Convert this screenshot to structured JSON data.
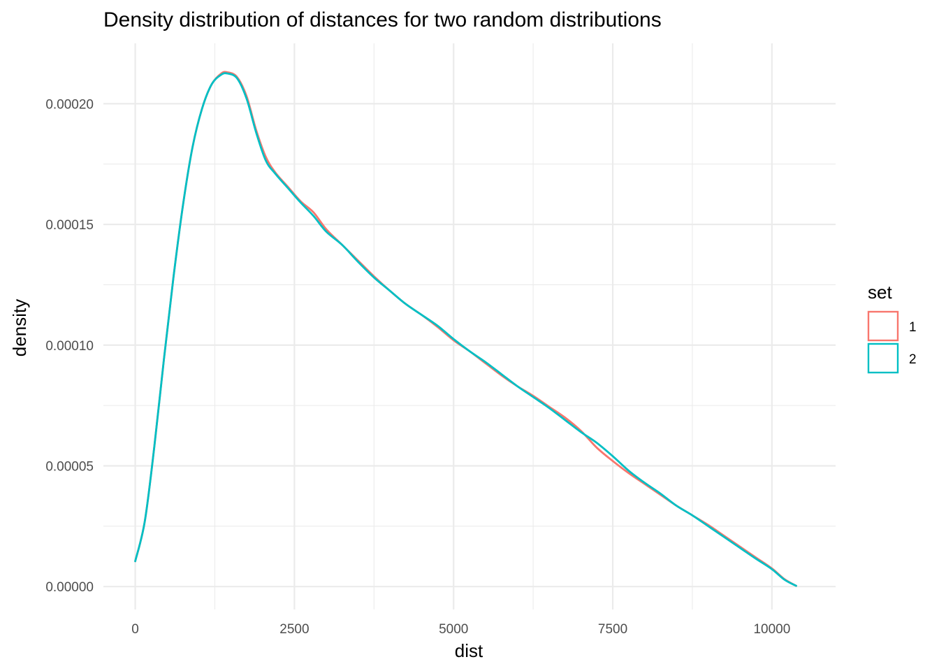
{
  "chart_data": {
    "type": "line",
    "title": "Density distribution of distances for two random distributions",
    "xlabel": "dist",
    "ylabel": "density",
    "xlim": [
      -500,
      11000
    ],
    "ylim": [
      -9.5e-06,
      0.000225
    ],
    "x_ticks": [
      0,
      2500,
      5000,
      7500,
      10000
    ],
    "x_tick_labels": [
      "0",
      "2500",
      "5000",
      "7500",
      "10000"
    ],
    "y_ticks": [
      0,
      5e-05,
      0.0001,
      0.00015,
      0.0002
    ],
    "y_tick_labels": [
      "0.00000",
      "0.00005",
      "0.00010",
      "0.00015",
      "0.00020"
    ],
    "grid": true,
    "legend": {
      "title": "set",
      "position": "right"
    },
    "series": [
      {
        "name": "1",
        "color": "#F8766D",
        "points": [
          [
            0,
            1.05e-05
          ],
          [
            150,
            2.7e-05
          ],
          [
            300,
            5.8e-05
          ],
          [
            450,
            9.4e-05
          ],
          [
            600,
            0.000128
          ],
          [
            750,
            0.000158
          ],
          [
            900,
            0.000182
          ],
          [
            1050,
            0.000198
          ],
          [
            1200,
            0.000208
          ],
          [
            1350,
            0.0002125
          ],
          [
            1450,
            0.000213
          ],
          [
            1600,
            0.000211
          ],
          [
            1750,
            0.000203
          ],
          [
            1900,
            0.000189
          ],
          [
            2050,
            0.000178
          ],
          [
            2200,
            0.0001715
          ],
          [
            2400,
            0.0001655
          ],
          [
            2600,
            0.0001595
          ],
          [
            2800,
            0.000155
          ],
          [
            3000,
            0.000148
          ],
          [
            3250,
            0.0001415
          ],
          [
            3500,
            0.000135
          ],
          [
            3750,
            0.0001285
          ],
          [
            4000,
            0.0001225
          ],
          [
            4250,
            0.000117
          ],
          [
            4500,
            0.0001125
          ],
          [
            4750,
            0.0001075
          ],
          [
            5000,
            0.000102
          ],
          [
            5250,
            9.75e-05
          ],
          [
            5500,
            9.25e-05
          ],
          [
            5750,
            8.75e-05
          ],
          [
            6000,
            8.3e-05
          ],
          [
            6250,
            7.9e-05
          ],
          [
            6500,
            7.45e-05
          ],
          [
            6750,
            7e-05
          ],
          [
            7000,
            6.45e-05
          ],
          [
            7250,
            5.75e-05
          ],
          [
            7500,
            5.2e-05
          ],
          [
            7750,
            4.7e-05
          ],
          [
            8000,
            4.25e-05
          ],
          [
            8250,
            3.8e-05
          ],
          [
            8500,
            3.35e-05
          ],
          [
            8750,
            2.95e-05
          ],
          [
            9000,
            2.55e-05
          ],
          [
            9250,
            2.1e-05
          ],
          [
            9500,
            1.65e-05
          ],
          [
            9750,
            1.2e-05
          ],
          [
            10000,
            7.5e-06
          ],
          [
            10200,
            3e-06
          ],
          [
            10380,
            3e-07
          ]
        ]
      },
      {
        "name": "2",
        "color": "#00BFC4",
        "points": [
          [
            0,
            1.05e-05
          ],
          [
            150,
            2.7e-05
          ],
          [
            300,
            5.8e-05
          ],
          [
            450,
            9.4e-05
          ],
          [
            600,
            0.000128
          ],
          [
            750,
            0.000158
          ],
          [
            900,
            0.000182
          ],
          [
            1050,
            0.000198
          ],
          [
            1200,
            0.000208
          ],
          [
            1350,
            0.000212
          ],
          [
            1450,
            0.0002125
          ],
          [
            1600,
            0.0002105
          ],
          [
            1750,
            0.000202
          ],
          [
            1900,
            0.000188
          ],
          [
            2050,
            0.0001765
          ],
          [
            2200,
            0.000171
          ],
          [
            2400,
            0.000165
          ],
          [
            2600,
            0.000159
          ],
          [
            2800,
            0.0001535
          ],
          [
            3000,
            0.000147
          ],
          [
            3250,
            0.0001415
          ],
          [
            3500,
            0.0001345
          ],
          [
            3750,
            0.000128
          ],
          [
            4000,
            0.0001225
          ],
          [
            4250,
            0.000117
          ],
          [
            4500,
            0.0001125
          ],
          [
            4750,
            0.000108
          ],
          [
            5000,
            0.0001025
          ],
          [
            5250,
            9.75e-05
          ],
          [
            5500,
            9.3e-05
          ],
          [
            5750,
            8.8e-05
          ],
          [
            6000,
            8.3e-05
          ],
          [
            6250,
            7.85e-05
          ],
          [
            6500,
            7.4e-05
          ],
          [
            6750,
            6.9e-05
          ],
          [
            7000,
            6.4e-05
          ],
          [
            7250,
            5.95e-05
          ],
          [
            7500,
            5.4e-05
          ],
          [
            7750,
            4.8e-05
          ],
          [
            8000,
            4.3e-05
          ],
          [
            8250,
            3.85e-05
          ],
          [
            8500,
            3.35e-05
          ],
          [
            8750,
            2.95e-05
          ],
          [
            9000,
            2.5e-05
          ],
          [
            9250,
            2.05e-05
          ],
          [
            9500,
            1.6e-05
          ],
          [
            9750,
            1.15e-05
          ],
          [
            10000,
            7.2e-06
          ],
          [
            10200,
            2.8e-06
          ],
          [
            10380,
            3e-07
          ]
        ]
      }
    ]
  }
}
